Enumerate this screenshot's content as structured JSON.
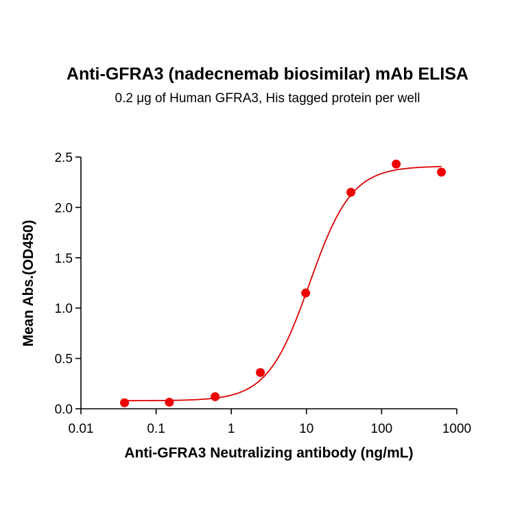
{
  "chart_data": {
    "type": "scatter",
    "title": "Anti-GFRA3 (nadecnemab biosimilar) mAb ELISA",
    "subtitle": "0.2 μg of Human GFRA3, His tagged protein per well",
    "xlabel": "Anti-GFRA3 Neutralizing antibody (ng/mL)",
    "ylabel": "Mean Abs.(OD450)",
    "x_scale": "log",
    "xlim": [
      0.01,
      1000
    ],
    "ylim": [
      0,
      2.5
    ],
    "x_ticks": [
      0.01,
      0.1,
      1,
      10,
      100,
      1000
    ],
    "x_tick_labels": [
      "0.01",
      "0.1",
      "1",
      "10",
      "100",
      "1000"
    ],
    "y_ticks": [
      0,
      0.5,
      1,
      1.5,
      2,
      2.5
    ],
    "y_tick_labels": [
      "0.0",
      "0.5",
      "1.0",
      "1.5",
      "2.0",
      "2.5"
    ],
    "grid": false,
    "legend": "none",
    "series": [
      {
        "x": [
          0.038,
          0.15,
          0.61,
          2.44,
          9.77,
          39.06,
          156.25,
          625
        ],
        "y": [
          0.06,
          0.065,
          0.12,
          0.36,
          1.15,
          2.15,
          2.43,
          2.35
        ],
        "marker_color": "#ee0000",
        "fit": "4PL",
        "fit_color": "#dd0000"
      }
    ]
  }
}
